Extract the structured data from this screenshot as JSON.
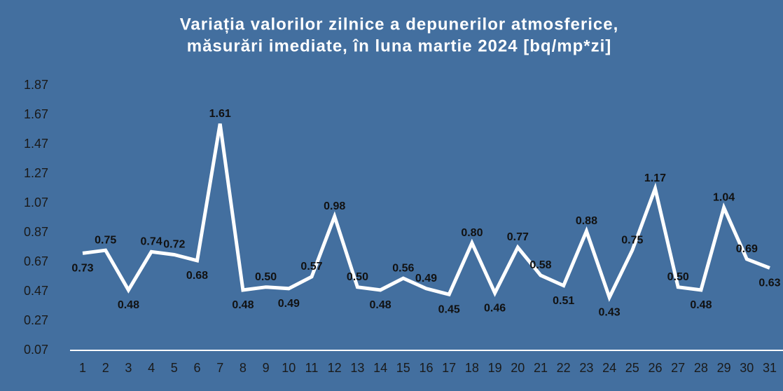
{
  "chart_data": {
    "type": "line",
    "title": [
      "Variația valorilor zilnice a depunerilor atmosferice,",
      "măsurări imediate, în luna martie 2024 [bq/mp*zi]"
    ],
    "categories": [
      "1",
      "2",
      "3",
      "4",
      "5",
      "6",
      "7",
      "8",
      "9",
      "10",
      "11",
      "12",
      "13",
      "14",
      "15",
      "16",
      "17",
      "18",
      "19",
      "20",
      "21",
      "22",
      "23",
      "24",
      "25",
      "26",
      "27",
      "28",
      "29",
      "30",
      "31"
    ],
    "series": [
      {
        "color": "#ffffff",
        "values": [
          0.73,
          0.75,
          0.48,
          0.74,
          0.72,
          0.68,
          1.61,
          0.48,
          0.5,
          0.49,
          0.57,
          0.98,
          0.5,
          0.48,
          0.56,
          0.49,
          0.45,
          0.8,
          0.46,
          0.77,
          0.58,
          0.51,
          0.88,
          0.43,
          0.75,
          1.17,
          0.5,
          0.48,
          1.04,
          0.69,
          0.63
        ],
        "value_labels": [
          "0.73",
          "0.75",
          "0.48",
          "0.74",
          "0.72",
          "0.68",
          "1.61",
          "0.48",
          "0.50",
          "0.49",
          "0.57",
          "0.98",
          "0.50",
          "0.48",
          "0.56",
          "0.49",
          "0.45",
          "0.80",
          "0.46",
          "0.77",
          "0.58",
          "0.51",
          "0.88",
          "0.43",
          "0.75",
          "1.17",
          "0.50",
          "0.48",
          "1.04",
          "0.69",
          "0.63"
        ]
      }
    ],
    "ylim": [
      0.07,
      1.87
    ],
    "yticks": [
      0.07,
      0.27,
      0.47,
      0.67,
      0.87,
      1.07,
      1.27,
      1.47,
      1.67,
      1.87
    ]
  }
}
